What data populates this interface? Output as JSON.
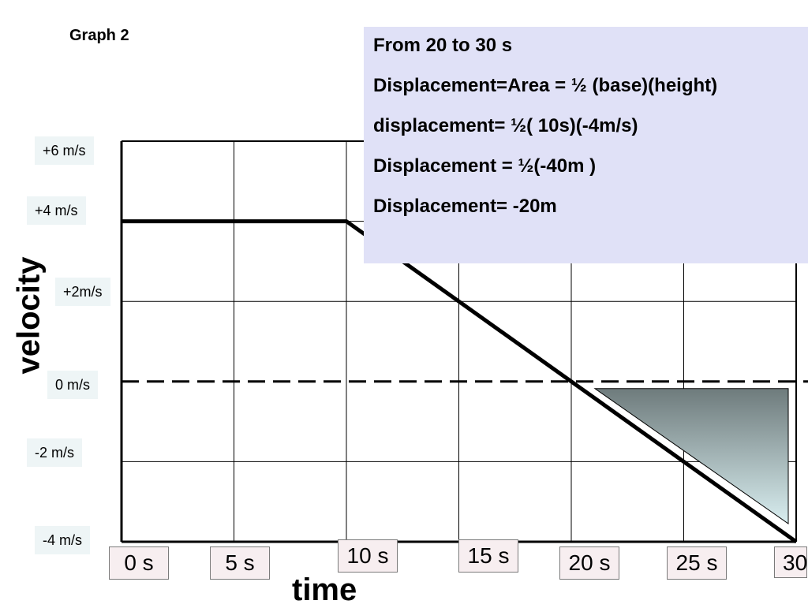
{
  "graph_title": "Graph 2",
  "axes": {
    "ylabel": "velocity",
    "xlabel": "time"
  },
  "y_tick_labels": [
    "+6 m/s",
    "+4 m/s",
    "+2m/s",
    "0 m/s",
    "-2 m/s",
    "-4 m/s"
  ],
  "x_tick_labels": [
    "0 s",
    "5 s",
    "10 s",
    "15 s",
    "20 s",
    "25 s",
    "30"
  ],
  "note": {
    "line1": "From 20 to 30 s",
    "line2": "Displacement=Area = ½ (base)(height)",
    "line3": "displacement= ½( 10s)(-4m/s)",
    "line4": "Displacement = ½(-40m )",
    "line5": "Displacement= -20m"
  },
  "colors": {
    "line": "#000000",
    "triangle_top": "#6e7b7c",
    "triangle_bottom": "#d9eef0",
    "note_background": "#e0e1f7",
    "ytick_background": "#eef5f6",
    "xtick_background": "#f7eef0"
  },
  "chart_data": {
    "type": "line",
    "xlabel": "time",
    "ylabel": "velocity",
    "xlim": [
      0,
      30
    ],
    "ylim": [
      -4,
      6
    ],
    "grid": true,
    "x_ticks": [
      0,
      5,
      10,
      15,
      20,
      25,
      30
    ],
    "y_ticks": [
      -4,
      -2,
      0,
      2,
      4,
      6
    ],
    "series": [
      {
        "x": [
          0,
          10,
          30
        ],
        "y": [
          4,
          4,
          -4
        ]
      }
    ],
    "zero_line": {
      "y": 0,
      "style": "dashed"
    },
    "shaded_region": {
      "shape": "triangle",
      "points": [
        [
          20,
          0
        ],
        [
          30,
          0
        ],
        [
          30,
          -4
        ]
      ]
    }
  }
}
